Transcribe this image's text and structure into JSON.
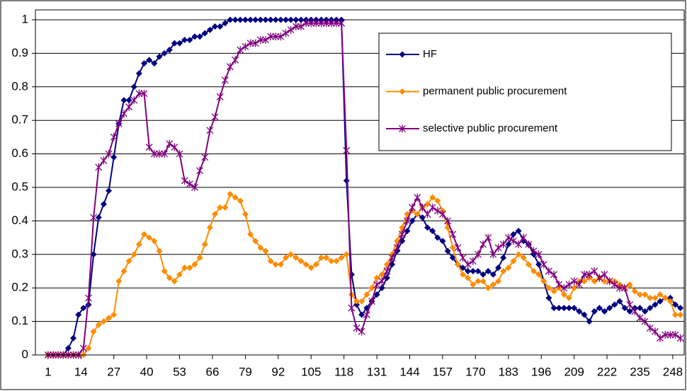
{
  "chart_data": {
    "type": "line",
    "x": [
      1,
      3,
      5,
      7,
      9,
      11,
      13,
      15,
      17,
      19,
      21,
      23,
      25,
      27,
      29,
      31,
      33,
      35,
      37,
      39,
      41,
      43,
      45,
      47,
      49,
      51,
      53,
      55,
      57,
      59,
      61,
      63,
      65,
      67,
      69,
      71,
      73,
      75,
      77,
      79,
      81,
      83,
      85,
      87,
      89,
      91,
      93,
      95,
      97,
      99,
      101,
      103,
      105,
      107,
      109,
      111,
      113,
      115,
      117,
      119,
      121,
      123,
      125,
      127,
      129,
      131,
      133,
      135,
      137,
      139,
      141,
      143,
      145,
      147,
      149,
      151,
      153,
      155,
      157,
      159,
      161,
      163,
      165,
      167,
      169,
      171,
      173,
      175,
      177,
      179,
      181,
      183,
      185,
      187,
      189,
      191,
      193,
      195,
      197,
      199,
      201,
      203,
      205,
      207,
      209,
      211,
      213,
      215,
      217,
      219,
      221,
      223,
      225,
      227,
      229,
      231,
      233,
      235,
      237,
      239,
      241,
      243,
      245,
      247,
      249,
      251
    ],
    "series": [
      {
        "name": "HF",
        "color": "#000080",
        "marker": "diamond",
        "values": [
          0,
          0,
          0,
          0,
          0.02,
          0.05,
          0.12,
          0.14,
          0.15,
          0.3,
          0.41,
          0.45,
          0.49,
          0.59,
          0.69,
          0.76,
          0.76,
          0.8,
          0.84,
          0.87,
          0.88,
          0.87,
          0.89,
          0.9,
          0.91,
          0.93,
          0.93,
          0.94,
          0.94,
          0.95,
          0.95,
          0.96,
          0.97,
          0.98,
          0.98,
          0.99,
          1,
          1,
          1,
          1,
          1,
          1,
          1,
          1,
          1,
          1,
          1,
          1,
          1,
          1,
          1,
          1,
          1,
          1,
          1,
          1,
          1,
          1,
          1,
          0.52,
          0.24,
          0.15,
          0.12,
          0.14,
          0.16,
          0.18,
          0.2,
          0.23,
          0.27,
          0.31,
          0.34,
          0.37,
          0.4,
          0.42,
          0.41,
          0.38,
          0.37,
          0.35,
          0.34,
          0.31,
          0.29,
          0.27,
          0.26,
          0.25,
          0.25,
          0.25,
          0.24,
          0.25,
          0.24,
          0.26,
          0.29,
          0.33,
          0.36,
          0.37,
          0.34,
          0.33,
          0.3,
          0.27,
          0.22,
          0.17,
          0.14,
          0.14,
          0.14,
          0.14,
          0.14,
          0.13,
          0.12,
          0.1,
          0.13,
          0.14,
          0.13,
          0.14,
          0.15,
          0.16,
          0.14,
          0.13,
          0.14,
          0.14,
          0.13,
          0.14,
          0.15,
          0.16,
          0.17,
          0.17,
          0.15,
          0.14
        ]
      },
      {
        "name": "permanent public procurement",
        "color": "#ff8c00",
        "marker": "diamond",
        "values": [
          0,
          0,
          0,
          0,
          0,
          0,
          0,
          0,
          0.02,
          0.07,
          0.09,
          0.1,
          0.11,
          0.12,
          0.22,
          0.25,
          0.28,
          0.3,
          0.33,
          0.36,
          0.35,
          0.34,
          0.31,
          0.25,
          0.23,
          0.22,
          0.24,
          0.26,
          0.26,
          0.27,
          0.29,
          0.33,
          0.38,
          0.42,
          0.44,
          0.44,
          0.48,
          0.47,
          0.46,
          0.42,
          0.36,
          0.34,
          0.32,
          0.31,
          0.28,
          0.27,
          0.27,
          0.29,
          0.3,
          0.29,
          0.28,
          0.27,
          0.26,
          0.27,
          0.29,
          0.29,
          0.28,
          0.28,
          0.29,
          0.3,
          0.18,
          0.16,
          0.16,
          0.18,
          0.2,
          0.23,
          0.24,
          0.27,
          0.3,
          0.34,
          0.38,
          0.42,
          0.43,
          0.42,
          0.44,
          0.45,
          0.47,
          0.46,
          0.43,
          0.38,
          0.32,
          0.27,
          0.24,
          0.23,
          0.21,
          0.22,
          0.22,
          0.2,
          0.21,
          0.22,
          0.25,
          0.26,
          0.28,
          0.3,
          0.29,
          0.27,
          0.25,
          0.24,
          0.22,
          0.2,
          0.19,
          0.2,
          0.18,
          0.17,
          0.2,
          0.22,
          0.22,
          0.23,
          0.22,
          0.23,
          0.22,
          0.22,
          0.22,
          0.21,
          0.2,
          0.21,
          0.19,
          0.18,
          0.18,
          0.17,
          0.17,
          0.18,
          0.17,
          0.16,
          0.12,
          0.12
        ]
      },
      {
        "name": "selective public procurement",
        "color": "#800080",
        "marker": "star",
        "values": [
          0,
          0,
          0,
          0,
          0,
          0,
          0,
          0.02,
          0.17,
          0.41,
          0.56,
          0.58,
          0.6,
          0.65,
          0.69,
          0.72,
          0.74,
          0.76,
          0.78,
          0.78,
          0.62,
          0.6,
          0.6,
          0.6,
          0.63,
          0.62,
          0.6,
          0.52,
          0.51,
          0.5,
          0.55,
          0.59,
          0.67,
          0.71,
          0.77,
          0.82,
          0.86,
          0.88,
          0.91,
          0.92,
          0.93,
          0.93,
          0.94,
          0.94,
          0.95,
          0.95,
          0.95,
          0.96,
          0.97,
          0.98,
          0.98,
          0.99,
          0.99,
          0.99,
          0.99,
          0.99,
          0.99,
          0.99,
          0.99,
          0.61,
          0.14,
          0.08,
          0.07,
          0.12,
          0.16,
          0.21,
          0.22,
          0.25,
          0.29,
          0.32,
          0.36,
          0.4,
          0.44,
          0.47,
          0.44,
          0.42,
          0.44,
          0.43,
          0.42,
          0.4,
          0.36,
          0.32,
          0.29,
          0.27,
          0.28,
          0.3,
          0.33,
          0.35,
          0.3,
          0.32,
          0.33,
          0.35,
          0.34,
          0.33,
          0.35,
          0.33,
          0.31,
          0.3,
          0.27,
          0.25,
          0.24,
          0.21,
          0.2,
          0.21,
          0.22,
          0.21,
          0.24,
          0.24,
          0.25,
          0.23,
          0.24,
          0.22,
          0.21,
          0.2,
          0.2,
          0.15,
          0.13,
          0.11,
          0.1,
          0.08,
          0.07,
          0.05,
          0.06,
          0.06,
          0.06,
          0.05
        ]
      }
    ],
    "xlim": [
      -4,
      252.5
    ],
    "xticks": [
      1,
      14,
      27,
      40,
      53,
      66,
      79,
      92,
      105,
      118,
      131,
      144,
      157,
      170,
      183,
      196,
      209,
      222,
      235,
      248
    ],
    "ylim": [
      0,
      1
    ],
    "yticks": [
      0,
      0.1,
      0.2,
      0.3,
      0.4,
      0.5,
      0.6,
      0.7,
      0.8,
      0.9,
      1
    ],
    "grid": true
  }
}
